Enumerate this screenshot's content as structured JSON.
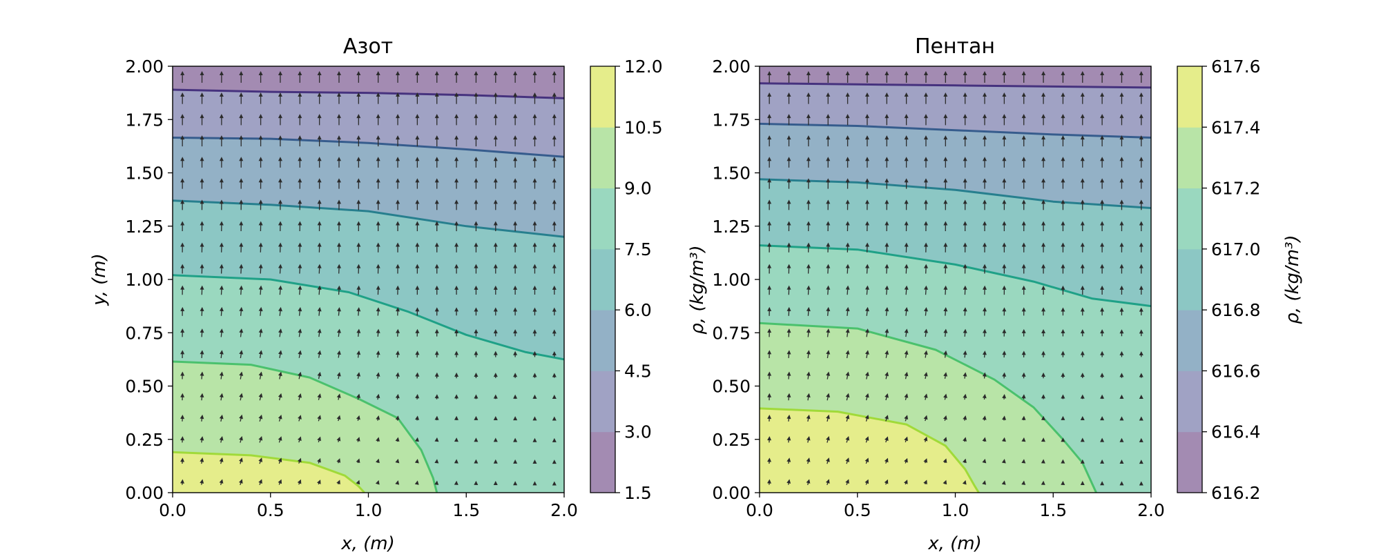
{
  "chart_data": [
    {
      "type": "contour",
      "title": "Азот",
      "xlabel": "x, (m)",
      "ylabel": "y, (m)",
      "xlim": [
        0,
        2
      ],
      "ylim": [
        0,
        2
      ],
      "x_ticks": [
        "0.0",
        "0.5",
        "1.0",
        "1.5",
        "2.0"
      ],
      "y_ticks": [
        "0.00",
        "0.25",
        "0.50",
        "0.75",
        "1.00",
        "1.25",
        "1.50",
        "1.75",
        "2.00"
      ],
      "colorbar": {
        "ticks": [
          "1.5",
          "3.0",
          "4.5",
          "6.0",
          "7.5",
          "9.0",
          "10.5",
          "12.0"
        ],
        "range": [
          1.5,
          12.0
        ],
        "band_colors": [
          "#a38bb2",
          "#a0a2c4",
          "#93b1c6",
          "#8cc7c4",
          "#9ad8bf",
          "#b8e4a7",
          "#e5ed8b"
        ]
      },
      "contour_levels": [
        {
          "level": 3.0,
          "color": "#46327e",
          "points": [
            [
              0,
              1.89
            ],
            [
              0.5,
              1.88
            ],
            [
              1.0,
              1.875
            ],
            [
              1.5,
              1.865
            ],
            [
              2.0,
              1.85
            ]
          ]
        },
        {
          "level": 4.5,
          "color": "#365c8d",
          "points": [
            [
              0,
              1.665
            ],
            [
              0.5,
              1.66
            ],
            [
              1.0,
              1.64
            ],
            [
              1.5,
              1.61
            ],
            [
              2.0,
              1.575
            ]
          ]
        },
        {
          "level": 6.0,
          "color": "#277f8e",
          "points": [
            [
              0,
              1.37
            ],
            [
              0.5,
              1.35
            ],
            [
              1.0,
              1.32
            ],
            [
              1.5,
              1.25
            ],
            [
              2.0,
              1.2
            ]
          ]
        },
        {
          "level": 7.5,
          "color": "#1fa187",
          "points": [
            [
              0,
              1.02
            ],
            [
              0.5,
              1.0
            ],
            [
              0.9,
              0.94
            ],
            [
              1.2,
              0.85
            ],
            [
              1.5,
              0.74
            ],
            [
              1.8,
              0.66
            ],
            [
              2.0,
              0.625
            ]
          ]
        },
        {
          "level": 9.0,
          "color": "#4ac16d",
          "points": [
            [
              0,
              0.615
            ],
            [
              0.4,
              0.6
            ],
            [
              0.7,
              0.54
            ],
            [
              0.95,
              0.44
            ],
            [
              1.15,
              0.35
            ],
            [
              1.27,
              0.2
            ],
            [
              1.33,
              0.07
            ],
            [
              1.35,
              0.0
            ]
          ]
        },
        {
          "level": 10.5,
          "color": "#a0da39",
          "points": [
            [
              0,
              0.19
            ],
            [
              0.4,
              0.175
            ],
            [
              0.7,
              0.14
            ],
            [
              0.88,
              0.08
            ],
            [
              0.95,
              0.03
            ],
            [
              0.98,
              0.0
            ]
          ]
        }
      ],
      "vector_field": "quiver arrows, mostly pointing +y; near the origin corner they bend outward toward +x"
    },
    {
      "type": "contour",
      "title": "Пентан",
      "xlabel": "x, (m)",
      "ylabel": "ρ, (kg/m³)",
      "xlim": [
        0,
        2
      ],
      "ylim": [
        0,
        2
      ],
      "x_ticks": [
        "0.0",
        "0.5",
        "1.0",
        "1.5",
        "2.0"
      ],
      "y_ticks": [
        "0.00",
        "0.25",
        "0.50",
        "0.75",
        "1.00",
        "1.25",
        "1.50",
        "1.75",
        "2.00"
      ],
      "colorbar": {
        "ticks": [
          "616.2",
          "616.4",
          "616.6",
          "616.8",
          "617.0",
          "617.2",
          "617.4",
          "617.6"
        ],
        "range": [
          616.2,
          617.6
        ],
        "band_colors": [
          "#a38bb2",
          "#a0a2c4",
          "#93b1c6",
          "#8cc7c4",
          "#9ad8bf",
          "#b8e4a7",
          "#e5ed8b"
        ]
      },
      "colorbar_label": "ρ, (kg/m³)",
      "contour_levels": [
        {
          "level": 616.4,
          "color": "#46327e",
          "points": [
            [
              0,
              1.92
            ],
            [
              0.5,
              1.915
            ],
            [
              1.0,
              1.91
            ],
            [
              1.5,
              1.905
            ],
            [
              2.0,
              1.9
            ]
          ]
        },
        {
          "level": 616.6,
          "color": "#365c8d",
          "points": [
            [
              0,
              1.73
            ],
            [
              0.5,
              1.72
            ],
            [
              1.0,
              1.7
            ],
            [
              1.5,
              1.68
            ],
            [
              2.0,
              1.665
            ]
          ]
        },
        {
          "level": 616.8,
          "color": "#277f8e",
          "points": [
            [
              0,
              1.47
            ],
            [
              0.5,
              1.455
            ],
            [
              1.0,
              1.42
            ],
            [
              1.5,
              1.365
            ],
            [
              2.0,
              1.335
            ]
          ]
        },
        {
          "level": 617.0,
          "color": "#1fa187",
          "points": [
            [
              0,
              1.16
            ],
            [
              0.5,
              1.14
            ],
            [
              1.0,
              1.07
            ],
            [
              1.4,
              0.99
            ],
            [
              1.7,
              0.91
            ],
            [
              2.0,
              0.875
            ]
          ]
        },
        {
          "level": 617.2,
          "color": "#4ac16d",
          "points": [
            [
              0,
              0.795
            ],
            [
              0.5,
              0.77
            ],
            [
              0.9,
              0.67
            ],
            [
              1.2,
              0.53
            ],
            [
              1.4,
              0.4
            ],
            [
              1.55,
              0.25
            ],
            [
              1.65,
              0.14
            ],
            [
              1.72,
              0.0
            ]
          ]
        },
        {
          "level": 617.4,
          "color": "#a0da39",
          "points": [
            [
              0,
              0.395
            ],
            [
              0.4,
              0.38
            ],
            [
              0.75,
              0.32
            ],
            [
              0.95,
              0.22
            ],
            [
              1.05,
              0.11
            ],
            [
              1.1,
              0.03
            ],
            [
              1.12,
              0.0
            ]
          ]
        }
      ],
      "vector_field": "quiver arrows, mostly pointing +y; near the origin corner they bend outward toward +x"
    }
  ]
}
